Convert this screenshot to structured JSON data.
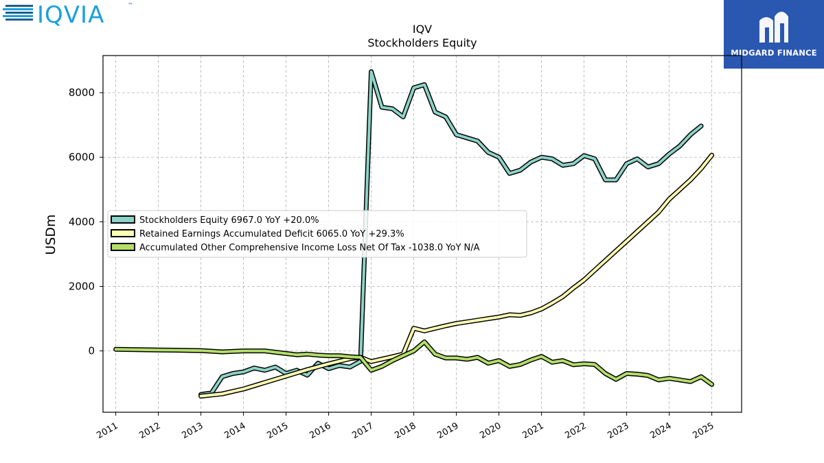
{
  "logos": {
    "left_text": "IQVIA",
    "left_tm": "™",
    "right_text": "MIDGARD FINANCE",
    "colors": {
      "iqvia_dark": "#1c5f8e",
      "iqvia_light": "#1a9fdb",
      "midgard_bg": "#2a57b0"
    }
  },
  "chart_data": {
    "type": "line",
    "title": "IQV",
    "subtitle": "Stockholders  Equity",
    "xlabel": "",
    "ylabel": "USDm",
    "xlim": [
      2010.7,
      2025.7
    ],
    "ylim": [
      -1900,
      9150
    ],
    "grid": true,
    "legend_position": "center-left",
    "x_ticks": [
      "2011",
      "2012",
      "2013",
      "2014",
      "2015",
      "2016",
      "2017",
      "2018",
      "2019",
      "2020",
      "2021",
      "2022",
      "2023",
      "2024",
      "2025"
    ],
    "y_ticks": [
      0,
      2000,
      4000,
      6000,
      8000
    ],
    "series": [
      {
        "name": "Stockholders Equity  6967.0 YoY +20.0%",
        "color": "#8dd3c7",
        "points": [
          [
            2013.0,
            -1350
          ],
          [
            2013.25,
            -1300
          ],
          [
            2013.5,
            -800
          ],
          [
            2013.75,
            -700
          ],
          [
            2014.0,
            -650
          ],
          [
            2014.25,
            -530
          ],
          [
            2014.5,
            -600
          ],
          [
            2014.75,
            -500
          ],
          [
            2015.0,
            -700
          ],
          [
            2015.25,
            -600
          ],
          [
            2015.5,
            -750
          ],
          [
            2015.75,
            -380
          ],
          [
            2016.0,
            -550
          ],
          [
            2016.25,
            -450
          ],
          [
            2016.5,
            -500
          ],
          [
            2016.75,
            -320
          ],
          [
            2017.0,
            8650
          ],
          [
            2017.25,
            7550
          ],
          [
            2017.5,
            7500
          ],
          [
            2017.75,
            7250
          ],
          [
            2018.0,
            8150
          ],
          [
            2018.25,
            8250
          ],
          [
            2018.5,
            7400
          ],
          [
            2018.75,
            7250
          ],
          [
            2019.0,
            6700
          ],
          [
            2019.25,
            6600
          ],
          [
            2019.5,
            6500
          ],
          [
            2019.75,
            6150
          ],
          [
            2020.0,
            6000
          ],
          [
            2020.25,
            5500
          ],
          [
            2020.5,
            5600
          ],
          [
            2020.75,
            5850
          ],
          [
            2021.0,
            6000
          ],
          [
            2021.25,
            5950
          ],
          [
            2021.5,
            5750
          ],
          [
            2021.75,
            5800
          ],
          [
            2022.0,
            6050
          ],
          [
            2022.25,
            5950
          ],
          [
            2022.5,
            5300
          ],
          [
            2022.75,
            5300
          ],
          [
            2023.0,
            5800
          ],
          [
            2023.25,
            5950
          ],
          [
            2023.5,
            5700
          ],
          [
            2023.75,
            5800
          ],
          [
            2024.0,
            6100
          ],
          [
            2024.25,
            6350
          ],
          [
            2024.5,
            6700
          ],
          [
            2024.75,
            6967
          ]
        ]
      },
      {
        "name": "Retained Earnings Accumulated Deficit  6065.0 YoY +29.3%",
        "color": "#ffffb3",
        "points": [
          [
            2013.0,
            -1400
          ],
          [
            2013.5,
            -1330
          ],
          [
            2014.0,
            -1180
          ],
          [
            2014.5,
            -980
          ],
          [
            2015.0,
            -780
          ],
          [
            2015.5,
            -580
          ],
          [
            2016.0,
            -400
          ],
          [
            2016.5,
            -240
          ],
          [
            2016.75,
            -200
          ],
          [
            2017.0,
            -330
          ],
          [
            2017.5,
            -180
          ],
          [
            2017.75,
            -100
          ],
          [
            2018.0,
            700
          ],
          [
            2018.25,
            620
          ],
          [
            2018.5,
            700
          ],
          [
            2018.75,
            780
          ],
          [
            2019.0,
            850
          ],
          [
            2019.5,
            950
          ],
          [
            2019.75,
            1000
          ],
          [
            2020.0,
            1050
          ],
          [
            2020.25,
            1120
          ],
          [
            2020.5,
            1100
          ],
          [
            2020.75,
            1180
          ],
          [
            2021.0,
            1300
          ],
          [
            2021.25,
            1480
          ],
          [
            2021.5,
            1680
          ],
          [
            2021.75,
            1950
          ],
          [
            2022.0,
            2200
          ],
          [
            2022.25,
            2500
          ],
          [
            2022.5,
            2800
          ],
          [
            2022.75,
            3100
          ],
          [
            2023.0,
            3400
          ],
          [
            2023.25,
            3700
          ],
          [
            2023.5,
            4000
          ],
          [
            2023.75,
            4300
          ],
          [
            2024.0,
            4700
          ],
          [
            2024.25,
            5000
          ],
          [
            2024.5,
            5300
          ],
          [
            2024.75,
            5650
          ],
          [
            2025.0,
            6065
          ]
        ]
      },
      {
        "name": "Accumulated Other Comprehensive Income Loss Net Of Tax  -1038.0 YoY N/A",
        "color": "#b3de69",
        "points": [
          [
            2011.0,
            50
          ],
          [
            2011.5,
            40
          ],
          [
            2012.0,
            30
          ],
          [
            2012.5,
            20
          ],
          [
            2013.0,
            10
          ],
          [
            2013.5,
            -30
          ],
          [
            2014.0,
            0
          ],
          [
            2014.5,
            0
          ],
          [
            2015.0,
            -80
          ],
          [
            2015.25,
            -120
          ],
          [
            2015.5,
            -100
          ],
          [
            2015.75,
            -130
          ],
          [
            2016.0,
            -150
          ],
          [
            2016.25,
            -150
          ],
          [
            2016.5,
            -180
          ],
          [
            2016.75,
            -200
          ],
          [
            2017.0,
            -600
          ],
          [
            2017.25,
            -480
          ],
          [
            2017.5,
            -300
          ],
          [
            2017.75,
            -150
          ],
          [
            2018.0,
            0
          ],
          [
            2018.25,
            280
          ],
          [
            2018.5,
            -100
          ],
          [
            2018.75,
            -220
          ],
          [
            2019.0,
            -220
          ],
          [
            2019.25,
            -260
          ],
          [
            2019.5,
            -200
          ],
          [
            2019.75,
            -380
          ],
          [
            2020.0,
            -300
          ],
          [
            2020.25,
            -480
          ],
          [
            2020.5,
            -420
          ],
          [
            2020.75,
            -280
          ],
          [
            2021.0,
            -170
          ],
          [
            2021.25,
            -350
          ],
          [
            2021.5,
            -300
          ],
          [
            2021.75,
            -430
          ],
          [
            2022.0,
            -400
          ],
          [
            2022.25,
            -420
          ],
          [
            2022.5,
            -700
          ],
          [
            2022.75,
            -880
          ],
          [
            2023.0,
            -700
          ],
          [
            2023.25,
            -720
          ],
          [
            2023.5,
            -760
          ],
          [
            2023.75,
            -900
          ],
          [
            2024.0,
            -850
          ],
          [
            2024.25,
            -900
          ],
          [
            2024.5,
            -950
          ],
          [
            2024.75,
            -800
          ],
          [
            2025.0,
            -1038
          ]
        ]
      }
    ]
  }
}
